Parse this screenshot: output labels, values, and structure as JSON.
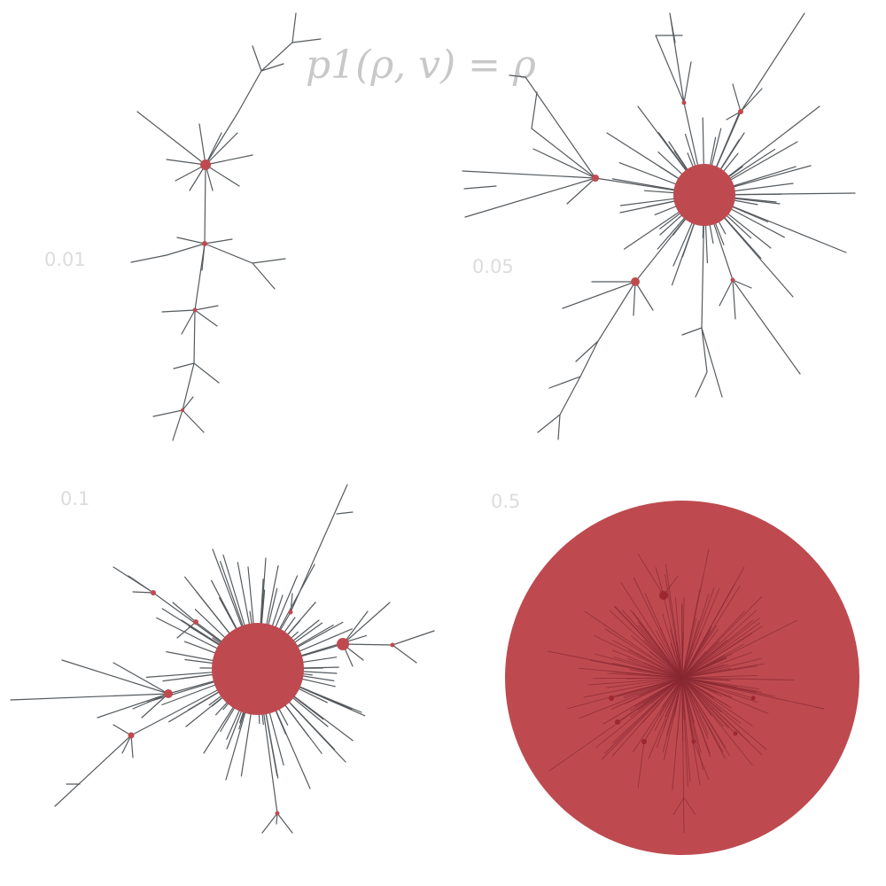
{
  "title": "p1(ρ, v) = ρ",
  "colors": {
    "node": "#be4a50",
    "edge": "#555a5e",
    "label": "#dcdcdc",
    "title": "#c8c8c8"
  },
  "panels": [
    {
      "label": "0.01"
    },
    {
      "label": "0.05"
    },
    {
      "label": "0.1"
    },
    {
      "label": "0.5"
    }
  ]
}
